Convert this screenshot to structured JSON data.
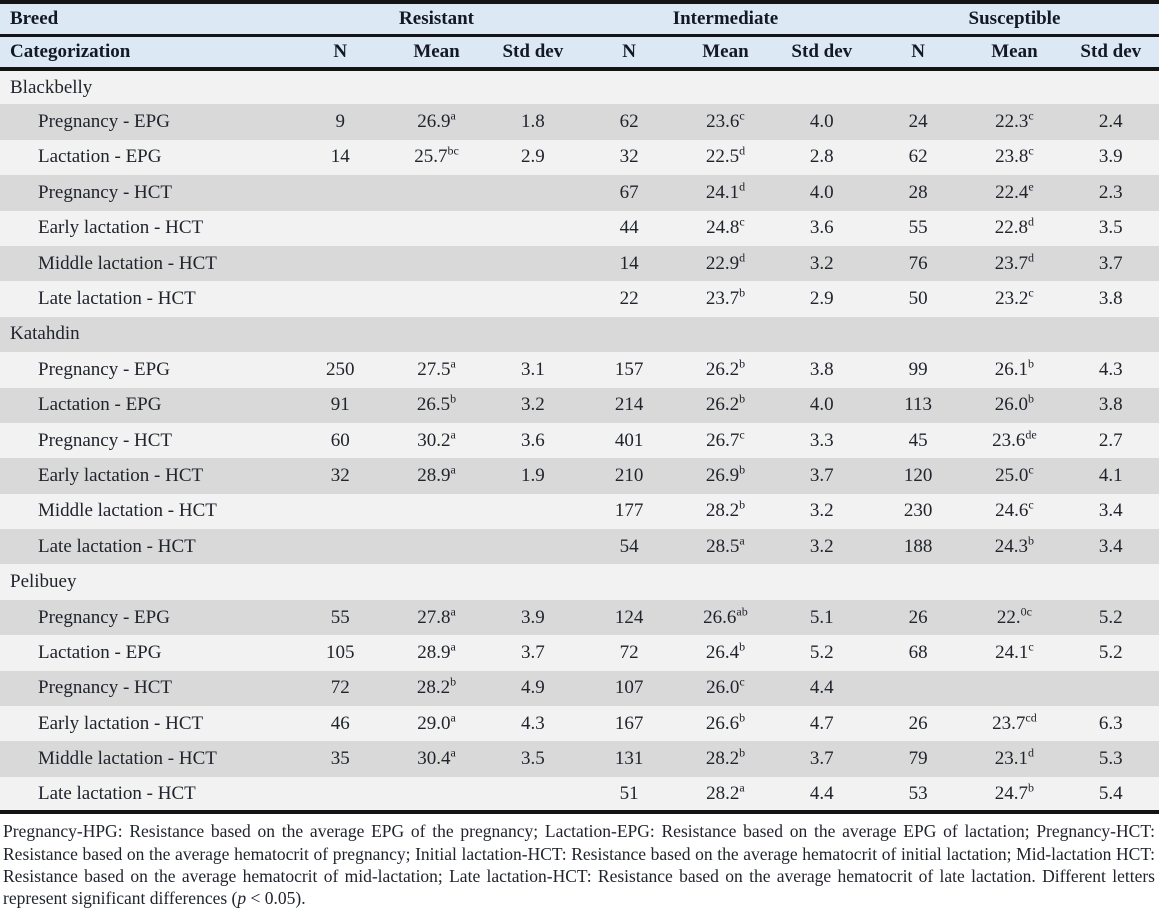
{
  "colors": {
    "header_bg": "#dce8f4",
    "header_text": "#121826",
    "text": "#20242c",
    "border": "#141414",
    "stripe_light": "#f2f2f2",
    "stripe_dark": "#d9d9d9"
  },
  "header": {
    "breed_label": "Breed",
    "categorization_label": "Categorization",
    "groups": [
      "Resistant",
      "Intermediate",
      "Susceptible"
    ],
    "subcols": [
      "N",
      "Mean",
      "Std dev"
    ]
  },
  "table": {
    "sections": [
      {
        "name": "Blackbelly",
        "rows": [
          {
            "label": "Pregnancy - EPG",
            "cells": [
              {
                "n": "9",
                "mean": "26.9",
                "sup": "a",
                "sd": "1.8"
              },
              {
                "n": "62",
                "mean": "23.6",
                "sup": "c",
                "sd": "4.0"
              },
              {
                "n": "24",
                "mean": "22.3",
                "sup": "c",
                "sd": "2.4"
              }
            ]
          },
          {
            "label": "Lactation - EPG",
            "cells": [
              {
                "n": "14",
                "mean": "25.7",
                "sup": "bc",
                "sd": "2.9"
              },
              {
                "n": "32",
                "mean": "22.5",
                "sup": "d",
                "sd": "2.8"
              },
              {
                "n": "62",
                "mean": "23.8",
                "sup": "c",
                "sd": "3.9"
              }
            ]
          },
          {
            "label": "Pregnancy - HCT",
            "cells": [
              {
                "n": "",
                "mean": "",
                "sup": "",
                "sd": ""
              },
              {
                "n": "67",
                "mean": "24.1",
                "sup": "d",
                "sd": "4.0"
              },
              {
                "n": "28",
                "mean": "22.4",
                "sup": "e",
                "sd": "2.3"
              }
            ]
          },
          {
            "label": "Early lactation - HCT",
            "cells": [
              {
                "n": "",
                "mean": "",
                "sup": "",
                "sd": ""
              },
              {
                "n": "44",
                "mean": "24.8",
                "sup": "c",
                "sd": "3.6"
              },
              {
                "n": "55",
                "mean": "22.8",
                "sup": "d",
                "sd": "3.5"
              }
            ]
          },
          {
            "label": "Middle lactation - HCT",
            "cells": [
              {
                "n": "",
                "mean": "",
                "sup": "",
                "sd": ""
              },
              {
                "n": "14",
                "mean": "22.9",
                "sup": "d",
                "sd": "3.2"
              },
              {
                "n": "76",
                "mean": "23.7",
                "sup": "d",
                "sd": "3.7"
              }
            ]
          },
          {
            "label": "Late lactation - HCT",
            "cells": [
              {
                "n": "",
                "mean": "",
                "sup": "",
                "sd": ""
              },
              {
                "n": "22",
                "mean": "23.7",
                "sup": "b",
                "sd": "2.9"
              },
              {
                "n": "50",
                "mean": "23.2",
                "sup": "c",
                "sd": "3.8"
              }
            ]
          }
        ]
      },
      {
        "name": "Katahdin",
        "rows": [
          {
            "label": "Pregnancy - EPG",
            "cells": [
              {
                "n": "250",
                "mean": "27.5",
                "sup": "a",
                "sd": "3.1"
              },
              {
                "n": "157",
                "mean": "26.2",
                "sup": "b",
                "sd": "3.8"
              },
              {
                "n": "99",
                "mean": "26.1",
                "sup": "b",
                "sd": "4.3"
              }
            ]
          },
          {
            "label": "Lactation - EPG",
            "cells": [
              {
                "n": "91",
                "mean": "26.5",
                "sup": "b",
                "sd": "3.2"
              },
              {
                "n": "214",
                "mean": "26.2",
                "sup": "b",
                "sd": "4.0"
              },
              {
                "n": "113",
                "mean": "26.0",
                "sup": "b",
                "sd": "3.8"
              }
            ]
          },
          {
            "label": "Pregnancy - HCT",
            "cells": [
              {
                "n": "60",
                "mean": "30.2",
                "sup": "a",
                "sd": "3.6"
              },
              {
                "n": "401",
                "mean": "26.7",
                "sup": "c",
                "sd": "3.3"
              },
              {
                "n": "45",
                "mean": "23.6",
                "sup": "de",
                "sd": "2.7"
              }
            ]
          },
          {
            "label": "Early lactation - HCT",
            "cells": [
              {
                "n": "32",
                "mean": "28.9",
                "sup": "a",
                "sd": "1.9"
              },
              {
                "n": "210",
                "mean": "26.9",
                "sup": "b",
                "sd": "3.7"
              },
              {
                "n": "120",
                "mean": "25.0",
                "sup": "c",
                "sd": "4.1"
              }
            ]
          },
          {
            "label": "Middle lactation - HCT",
            "cells": [
              {
                "n": "",
                "mean": "",
                "sup": "",
                "sd": ""
              },
              {
                "n": "177",
                "mean": "28.2",
                "sup": "b",
                "sd": "3.2"
              },
              {
                "n": "230",
                "mean": "24.6",
                "sup": "c",
                "sd": "3.4"
              }
            ]
          },
          {
            "label": "Late lactation - HCT",
            "cells": [
              {
                "n": "",
                "mean": "",
                "sup": "",
                "sd": ""
              },
              {
                "n": "54",
                "mean": "28.5",
                "sup": "a",
                "sd": "3.2"
              },
              {
                "n": "188",
                "mean": "24.3",
                "sup": "b",
                "sd": "3.4"
              }
            ]
          }
        ]
      },
      {
        "name": "Pelibuey",
        "rows": [
          {
            "label": "Pregnancy - EPG",
            "cells": [
              {
                "n": "55",
                "mean": "27.8",
                "sup": "a",
                "sd": "3.9"
              },
              {
                "n": "124",
                "mean": "26.6",
                "sup": "ab",
                "sd": "5.1"
              },
              {
                "n": "26",
                "mean": "22.",
                "sup": "0c",
                "sd": "5.2"
              }
            ]
          },
          {
            "label": "Lactation - EPG",
            "cells": [
              {
                "n": "105",
                "mean": "28.9",
                "sup": "a",
                "sd": "3.7"
              },
              {
                "n": "72",
                "mean": "26.4",
                "sup": "b",
                "sd": "5.2"
              },
              {
                "n": "68",
                "mean": "24.1",
                "sup": "c",
                "sd": "5.2"
              }
            ]
          },
          {
            "label": "Pregnancy - HCT",
            "cells": [
              {
                "n": "72",
                "mean": "28.2",
                "sup": "b",
                "sd": "4.9"
              },
              {
                "n": "107",
                "mean": "26.0",
                "sup": "c",
                "sd": "4.4"
              },
              {
                "n": "",
                "mean": "",
                "sup": "",
                "sd": ""
              }
            ]
          },
          {
            "label": "Early lactation - HCT",
            "cells": [
              {
                "n": "46",
                "mean": "29.0",
                "sup": "a",
                "sd": "4.3"
              },
              {
                "n": "167",
                "mean": "26.6",
                "sup": "b",
                "sd": "4.7"
              },
              {
                "n": "26",
                "mean": "23.7",
                "sup": "cd",
                "sd": "6.3"
              }
            ]
          },
          {
            "label": "Middle lactation - HCT",
            "cells": [
              {
                "n": "35",
                "mean": "30.4",
                "sup": "a",
                "sd": "3.5"
              },
              {
                "n": "131",
                "mean": "28.2",
                "sup": "b",
                "sd": "3.7"
              },
              {
                "n": "79",
                "mean": "23.1",
                "sup": "d",
                "sd": "5.3"
              }
            ]
          },
          {
            "label": "Late lactation - HCT",
            "cells": [
              {
                "n": "",
                "mean": "",
                "sup": "",
                "sd": ""
              },
              {
                "n": "51",
                "mean": "28.2",
                "sup": "a",
                "sd": "4.4"
              },
              {
                "n": "53",
                "mean": "24.7",
                "sup": "b",
                "sd": "5.4"
              }
            ]
          }
        ]
      }
    ]
  },
  "footnote": {
    "main": "Pregnancy-HPG: Resistance based on the average EPG of the pregnancy; Lactation-EPG: Resistance based on the average EPG of lactation; Pregnancy-HCT: Resistance based on the average hematocrit of pregnancy; Initial lactation-HCT: Resistance based on the average hematocrit of initial lactation; Mid-lactation HCT: Resistance based on the average hematocrit of mid-lactation; Late lactation-HCT: Resistance based on the average hematocrit of late lactation. Different letters represent significant differences (",
    "p_symbol": "p",
    "tail": " < 0.05)."
  }
}
